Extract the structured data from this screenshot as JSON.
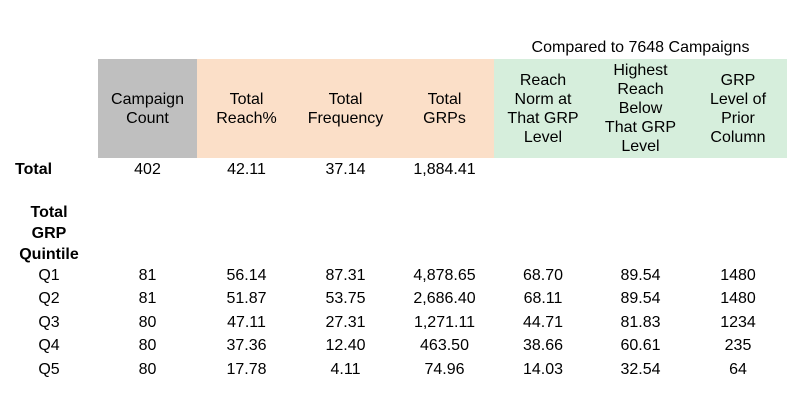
{
  "colors": {
    "gray": "#BFBFBF",
    "peach": "#FBDFC8",
    "green": "#D6EEDC"
  },
  "compare_label": "Compared to 7648 Campaigns",
  "headers": {
    "campaign_count": "Campaign\nCount",
    "total_reach_pct": "Total\nReach%",
    "total_frequency": "Total\nFrequency",
    "total_grps": "Total\nGRPs",
    "reach_norm": "Reach\nNorm at\nThat GRP\nLevel",
    "highest_reach_below": "Highest\nReach\nBelow\nThat GRP\nLevel",
    "grp_level_prior": "GRP\nLevel of\nPrior\nColumn"
  },
  "section_label_display": "Total\nGRP\nQuintile",
  "chart_data": {
    "type": "table",
    "group_header": "Compared to 7648 Campaigns",
    "group_header_spans_columns": [
      "Reach Norm at That GRP Level",
      "Highest Reach Below That GRP Level",
      "GRP Level of Prior Column"
    ],
    "columns": [
      "Campaign Count",
      "Total Reach%",
      "Total Frequency",
      "Total GRPs",
      "Reach Norm at That GRP Level",
      "Highest Reach Below That GRP Level",
      "GRP Level of Prior Column"
    ],
    "section_label": "Total GRP Quintile",
    "rows": [
      {
        "label": "Total",
        "values": [
          "402",
          "42.11",
          "37.14",
          "1,884.41",
          "",
          "",
          ""
        ]
      },
      {
        "label": "Q1",
        "values": [
          "81",
          "56.14",
          "87.31",
          "4,878.65",
          "68.70",
          "89.54",
          "1480"
        ]
      },
      {
        "label": "Q2",
        "values": [
          "81",
          "51.87",
          "53.75",
          "2,686.40",
          "68.11",
          "89.54",
          "1480"
        ]
      },
      {
        "label": "Q3",
        "values": [
          "80",
          "47.11",
          "27.31",
          "1,271.11",
          "44.71",
          "81.83",
          "1234"
        ]
      },
      {
        "label": "Q4",
        "values": [
          "80",
          "37.36",
          "12.40",
          "463.50",
          "38.66",
          "60.61",
          "235"
        ]
      },
      {
        "label": "Q5",
        "values": [
          "80",
          "17.78",
          "4.11",
          "74.96",
          "14.03",
          "32.54",
          "64"
        ]
      }
    ]
  }
}
